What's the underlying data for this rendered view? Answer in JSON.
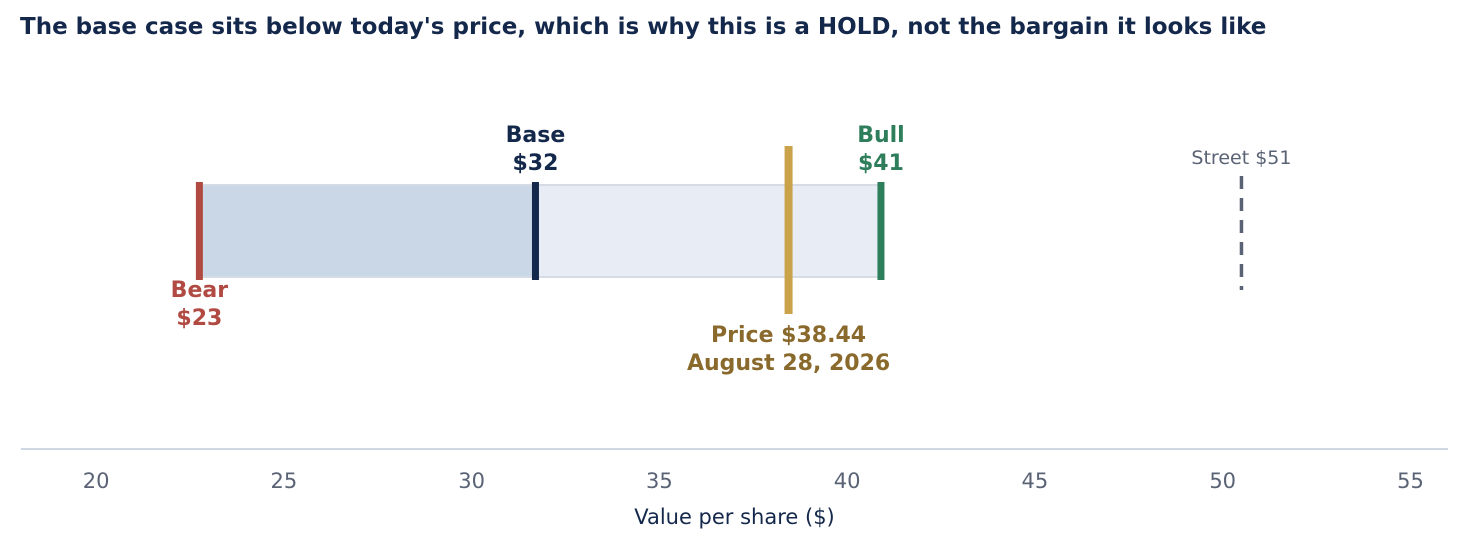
{
  "chart_data": {
    "type": "range",
    "title": "The base case sits below today's price, which is why this is a HOLD, not the bargain it looks like",
    "xlabel": "Value per share ($)",
    "xlim": [
      18,
      56
    ],
    "xticks": [
      20,
      25,
      30,
      35,
      40,
      45,
      50,
      55
    ],
    "grid": false,
    "scenarios": {
      "bear": {
        "line1": "Bear",
        "line2": "$23",
        "value": 22.75,
        "color": "#b04a42"
      },
      "base": {
        "line1": "Base",
        "line2": "$32",
        "value": 31.7,
        "color": "#14284b"
      },
      "bull": {
        "line1": "Bull",
        "line2": "$41",
        "value": 40.9,
        "color": "#2e7d5b"
      }
    },
    "price": {
      "line1": "Price $38.44",
      "line2": "August 28, 2026",
      "value": 38.44,
      "color": "#c9a24a",
      "text_color": "#8a6a2c"
    },
    "street": {
      "label": "Street $51",
      "value": 50.5,
      "color": "#5a6375"
    },
    "range_colors": {
      "bear_to_base": "#cad7e6",
      "base_to_bull": "#e8edf5"
    }
  }
}
